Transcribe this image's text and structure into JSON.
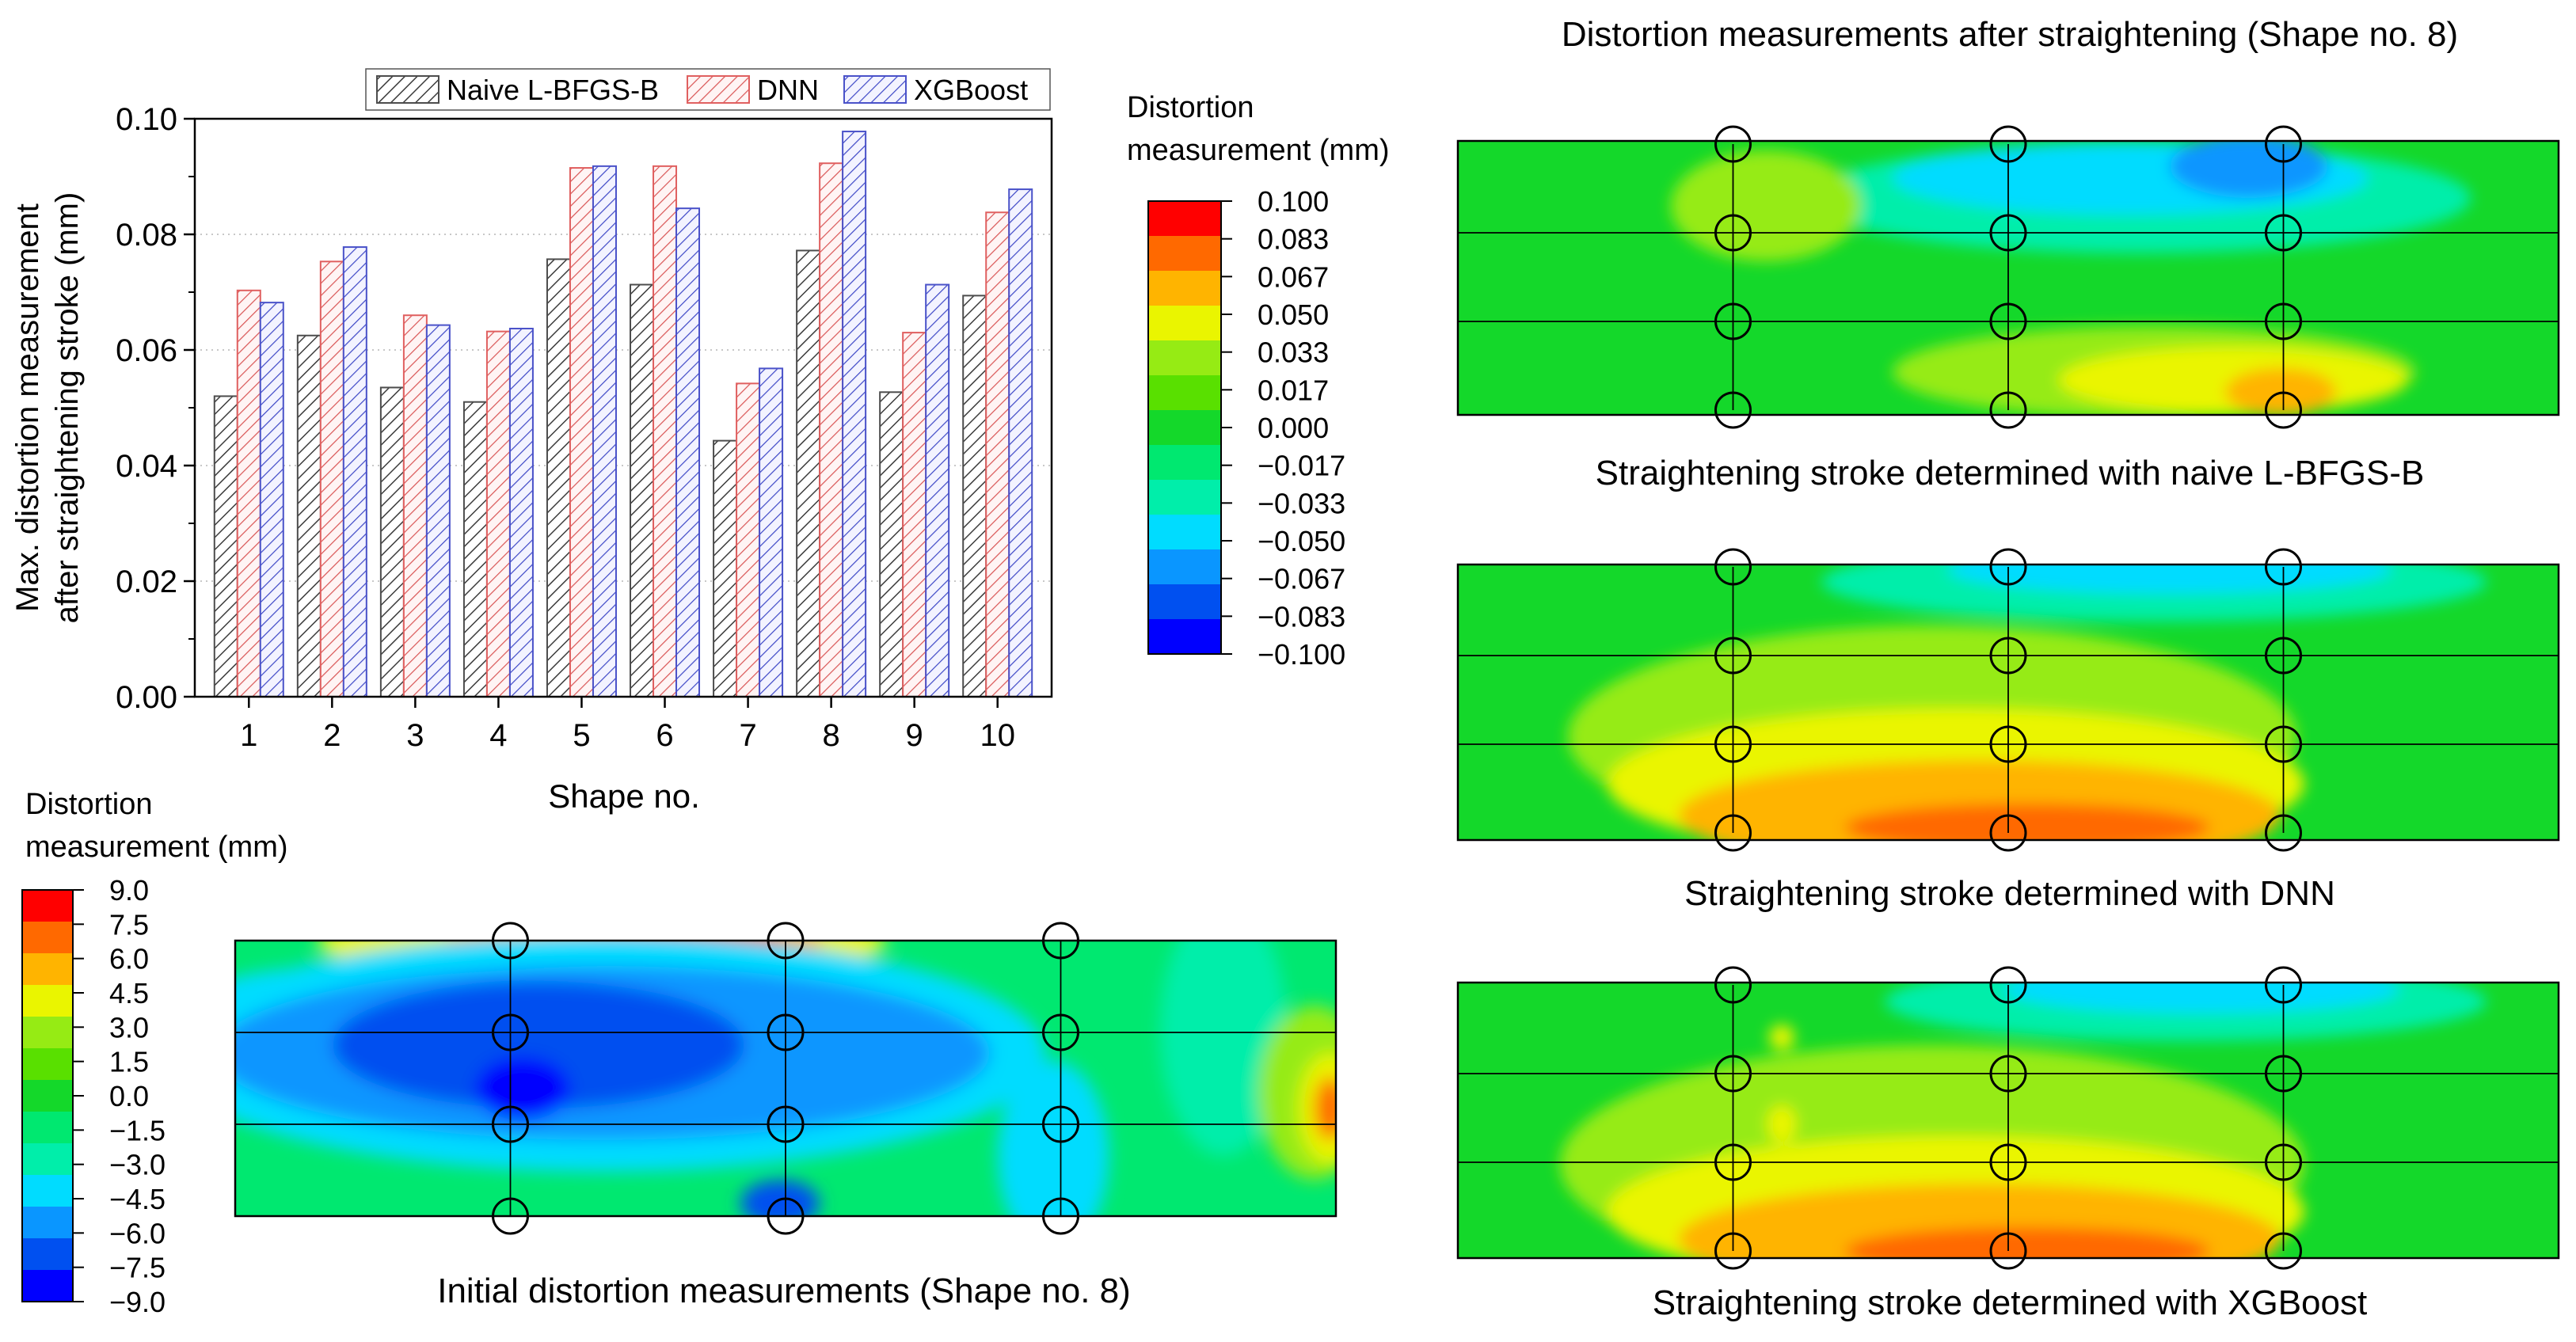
{
  "chart_data": [
    {
      "type": "bar",
      "title": "",
      "xlabel": "Shape no.",
      "ylabel_lines": [
        "Max. distortion measurement",
        "after straightening stroke (mm)"
      ],
      "ylim": [
        0,
        0.1
      ],
      "yticks": [
        "0.00",
        "0.02",
        "0.04",
        "0.06",
        "0.08",
        "0.10"
      ],
      "grid": "horizontal dotted",
      "legend_position": "top",
      "categories": [
        "1",
        "2",
        "3",
        "4",
        "5",
        "6",
        "7",
        "8",
        "9",
        "10"
      ],
      "series": [
        {
          "name": "Naive L-BFGS-B",
          "color": "#4d4d4d",
          "fill": "#ffffff",
          "values": [
            0.052,
            0.0625,
            0.0535,
            0.051,
            0.0757,
            0.0713,
            0.0443,
            0.0772,
            0.0527,
            0.0694
          ]
        },
        {
          "name": "DNN",
          "color": "#e06060",
          "fill": "#fff3f3",
          "values": [
            0.0703,
            0.0753,
            0.066,
            0.0632,
            0.0915,
            0.0918,
            0.0542,
            0.0923,
            0.063,
            0.0838
          ]
        },
        {
          "name": "XGBoost",
          "color": "#4a52c9",
          "fill": "#f2f2ff",
          "values": [
            0.0682,
            0.0778,
            0.0643,
            0.0637,
            0.0918,
            0.0845,
            0.0568,
            0.0978,
            0.0713,
            0.0878
          ]
        }
      ]
    },
    {
      "type": "heatmap",
      "title": "Distortion measurements after straightening (Shape no. 8)",
      "colorbar_label_lines": [
        "Distortion",
        "measurement (mm)"
      ],
      "colorbar_ticks": [
        "0.100",
        "0.083",
        "0.067",
        "0.050",
        "0.033",
        "0.017",
        "0.000",
        "−0.017",
        "−0.033",
        "−0.050",
        "−0.067",
        "−0.083",
        "−0.100"
      ],
      "range": [
        -0.1,
        0.1
      ],
      "panels": [
        {
          "caption": "Straightening stroke determined with naive L-BFGS-B"
        },
        {
          "caption": "Straightening stroke determined with DNN"
        },
        {
          "caption": "Straightening stroke determined with XGBoost"
        }
      ]
    },
    {
      "type": "heatmap",
      "title": "Initial distortion measurements (Shape no. 8)",
      "colorbar_label_lines": [
        "Distortion",
        "measurement (mm)"
      ],
      "colorbar_ticks": [
        "9.0",
        "7.5",
        "6.0",
        "4.5",
        "3.0",
        "1.5",
        "0.0",
        "−1.5",
        "−3.0",
        "−4.5",
        "−6.0",
        "−7.5",
        "−9.0"
      ],
      "range": [
        -9.0,
        9.0
      ]
    }
  ],
  "colors": {
    "scale": [
      "#0000ff",
      "#0050f0",
      "#0a96ff",
      "#00dcff",
      "#00eeaa",
      "#00e870",
      "#14d82a",
      "#59e000",
      "#96eb14",
      "#eaf500",
      "#ffb400",
      "#ff6900",
      "#ff0000"
    ]
  }
}
